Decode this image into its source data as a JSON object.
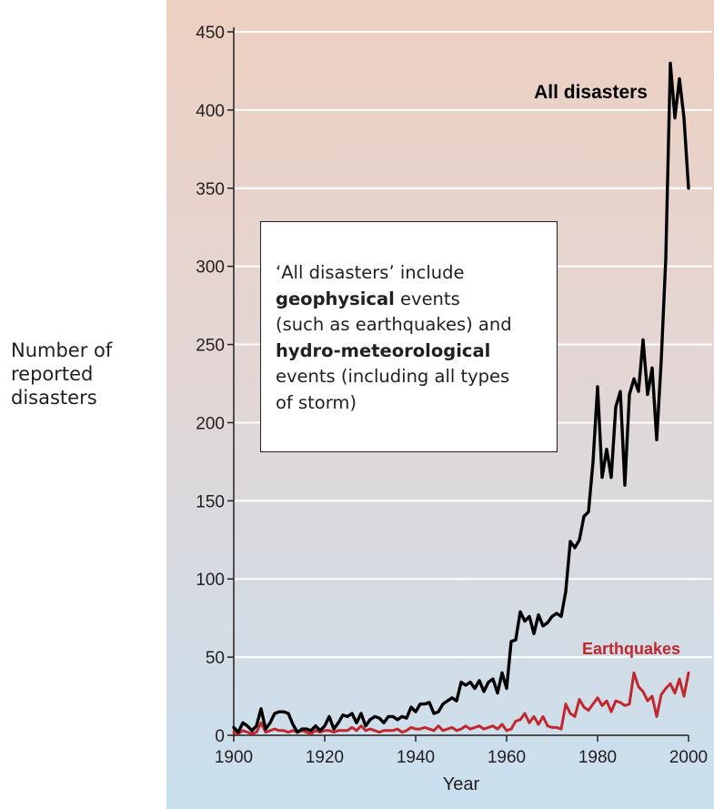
{
  "y_axis_side_label": [
    "Number of",
    "reported",
    "disasters"
  ],
  "note": {
    "line1": "‘All disasters’ include",
    "line2_bold": "geophysical",
    "line2_rest": " events",
    "line3": "(such as earthquakes) and",
    "line4_bold": "hydro-meteorological",
    "line5": "events (including all types",
    "line6": "of storm)"
  },
  "colors": {
    "bg_top": "#edd0c1",
    "bg_bottom": "#c9e0ef",
    "all_disasters": "#000000",
    "earthquakes": "#c1272d",
    "grid": "#ffffff",
    "text": "#231f20"
  },
  "chart_data": {
    "type": "line",
    "xlabel": "Year",
    "ylabel": "Number of reported disasters",
    "xlim": [
      1900,
      2000
    ],
    "ylim": [
      0,
      450
    ],
    "xticks": [
      1900,
      1920,
      1940,
      1960,
      1980,
      2000
    ],
    "yticks": [
      0,
      50,
      100,
      150,
      200,
      250,
      300,
      350,
      400,
      450
    ],
    "grid": "horizontal",
    "series": [
      {
        "name": "All disasters",
        "x": [
          1900,
          1901,
          1902,
          1903,
          1904,
          1905,
          1906,
          1907,
          1908,
          1909,
          1910,
          1911,
          1912,
          1913,
          1914,
          1915,
          1916,
          1917,
          1918,
          1919,
          1920,
          1921,
          1922,
          1923,
          1924,
          1925,
          1926,
          1927,
          1928,
          1929,
          1930,
          1931,
          1932,
          1933,
          1934,
          1935,
          1936,
          1937,
          1938,
          1939,
          1940,
          1941,
          1942,
          1943,
          1944,
          1945,
          1946,
          1947,
          1948,
          1949,
          1950,
          1951,
          1952,
          1953,
          1954,
          1955,
          1956,
          1957,
          1958,
          1959,
          1960,
          1961,
          1962,
          1963,
          1964,
          1965,
          1966,
          1967,
          1968,
          1969,
          1970,
          1971,
          1972,
          1973,
          1974,
          1975,
          1976,
          1977,
          1978,
          1979,
          1980,
          1981,
          1982,
          1983,
          1984,
          1985,
          1986,
          1987,
          1988,
          1989,
          1990,
          1991,
          1992,
          1993,
          1994,
          1995,
          1996,
          1997,
          1998,
          1999,
          2000
        ],
        "values": [
          5,
          2,
          8,
          6,
          3,
          6,
          17,
          4,
          8,
          14,
          15,
          15,
          14,
          7,
          2,
          4,
          4,
          3,
          6,
          3,
          6,
          12,
          4,
          8,
          13,
          12,
          14,
          8,
          14,
          6,
          10,
          12,
          11,
          8,
          12,
          12,
          10,
          12,
          11,
          18,
          15,
          20,
          20,
          21,
          14,
          15,
          20,
          22,
          24,
          22,
          34,
          32,
          34,
          30,
          35,
          28,
          34,
          36,
          27,
          40,
          30,
          60,
          61,
          79,
          73,
          76,
          65,
          77,
          70,
          72,
          76,
          78,
          76,
          92,
          124,
          120,
          125,
          140,
          143,
          175,
          223,
          165,
          183,
          165,
          210,
          220,
          160,
          218,
          228,
          220,
          253,
          218,
          235,
          189,
          240,
          305,
          430,
          395,
          420,
          395,
          350
        ]
      },
      {
        "name": "Earthquakes",
        "x": [
          1900,
          1901,
          1902,
          1903,
          1904,
          1905,
          1906,
          1907,
          1908,
          1909,
          1910,
          1911,
          1912,
          1913,
          1914,
          1915,
          1916,
          1917,
          1918,
          1919,
          1920,
          1921,
          1922,
          1923,
          1924,
          1925,
          1926,
          1927,
          1928,
          1929,
          1930,
          1931,
          1932,
          1933,
          1934,
          1935,
          1936,
          1937,
          1938,
          1939,
          1940,
          1941,
          1942,
          1943,
          1944,
          1945,
          1946,
          1947,
          1948,
          1949,
          1950,
          1951,
          1952,
          1953,
          1954,
          1955,
          1956,
          1957,
          1958,
          1959,
          1960,
          1961,
          1962,
          1963,
          1964,
          1965,
          1966,
          1967,
          1968,
          1969,
          1970,
          1971,
          1972,
          1973,
          1974,
          1975,
          1976,
          1977,
          1978,
          1979,
          1980,
          1981,
          1982,
          1983,
          1984,
          1985,
          1986,
          1987,
          1988,
          1989,
          1990,
          1991,
          1992,
          1993,
          1994,
          1995,
          1996,
          1997,
          1998,
          1999,
          2000
        ],
        "values": [
          2,
          1,
          3,
          2,
          1,
          2,
          8,
          2,
          3,
          4,
          3,
          3,
          2,
          3,
          2,
          3,
          2,
          1,
          3,
          2,
          3,
          3,
          2,
          3,
          3,
          3,
          5,
          3,
          6,
          3,
          4,
          3,
          2,
          3,
          3,
          3,
          4,
          2,
          3,
          5,
          4,
          4,
          5,
          4,
          3,
          6,
          3,
          4,
          5,
          3,
          4,
          6,
          4,
          5,
          6,
          4,
          5,
          6,
          4,
          7,
          3,
          4,
          9,
          10,
          14,
          8,
          12,
          7,
          12,
          6,
          5,
          5,
          4,
          20,
          14,
          12,
          23,
          18,
          16,
          20,
          24,
          19,
          22,
          15,
          22,
          21,
          19,
          20,
          40,
          31,
          28,
          22,
          25,
          12,
          26,
          30,
          33,
          27,
          36,
          25,
          40
        ]
      }
    ],
    "annotations": [
      {
        "text": "All disasters",
        "x": 1989,
        "y": 405,
        "color": "#000000"
      },
      {
        "text": "Earthquakes",
        "x": 1987,
        "y": 54,
        "color": "#c1272d"
      }
    ]
  }
}
